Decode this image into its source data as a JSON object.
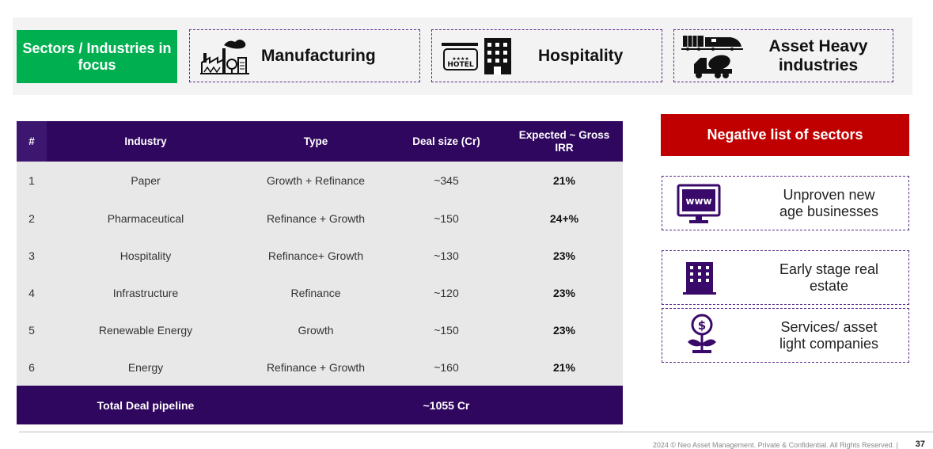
{
  "focus": {
    "label": "Sectors / Industries in focus",
    "sectors": [
      {
        "name": "Manufacturing",
        "icon": "factory-icon"
      },
      {
        "name": "Hospitality",
        "icon": "hotel-icon"
      },
      {
        "name": "Asset Heavy industries",
        "icon": "train-truck-icon"
      }
    ]
  },
  "table": {
    "headers": [
      "#",
      "Industry",
      "Type",
      "Deal size (Cr)",
      "Expected ~ Gross IRR"
    ],
    "rows": [
      {
        "num": "1",
        "industry": "Paper",
        "type": "Growth + Refinance",
        "deal": "~345",
        "irr": "21%"
      },
      {
        "num": "2",
        "industry": "Pharmaceutical",
        "type": "Refinance + Growth",
        "deal": "~150",
        "irr": "24+%"
      },
      {
        "num": "3",
        "industry": "Hospitality",
        "type": "Refinance+ Growth",
        "deal": "~130",
        "irr": "23%"
      },
      {
        "num": "4",
        "industry": "Infrastructure",
        "type": "Refinance",
        "deal": "~120",
        "irr": "23%"
      },
      {
        "num": "5",
        "industry": "Renewable Energy",
        "type": "Growth",
        "deal": "~150",
        "irr": "23%"
      },
      {
        "num": "6",
        "industry": "Energy",
        "type": "Refinance + Growth",
        "deal": "~160",
        "irr": "21%"
      }
    ],
    "total_label": "Total Deal pipeline",
    "total_value": "~1055 Cr"
  },
  "negative": {
    "title": "Negative list of sectors",
    "items": [
      {
        "text": "Unproven new age businesses",
        "icon": "www-monitor-icon"
      },
      {
        "text": "Early stage real estate",
        "icon": "building-icon"
      },
      {
        "text": "Services/ asset light companies",
        "icon": "money-plant-icon"
      }
    ]
  },
  "footer": {
    "text": "2024 © Neo Asset Management. Private & Confidential. All Rights Reserved.   |",
    "page": "37"
  },
  "colors": {
    "accent_green": "#00b050",
    "header_purple": "#30075f",
    "negative_red": "#c00000"
  }
}
